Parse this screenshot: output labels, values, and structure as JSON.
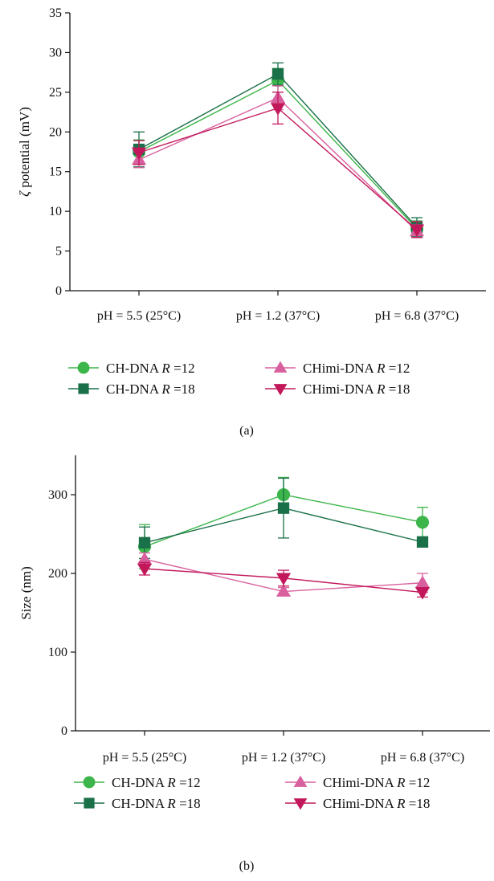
{
  "chart_data": [
    {
      "type": "line",
      "panel_label": "(a)",
      "ylabel_symbol": "ζ",
      "ylabel_text": " potential (mV)",
      "xlabel": "",
      "categories": [
        "pH = 5.5 (25°C)",
        "pH = 1.2 (37°C)",
        "pH = 6.8 (37°C)"
      ],
      "ylim": [
        0,
        35
      ],
      "yticks": [
        0,
        5,
        10,
        15,
        20,
        25,
        30,
        35
      ],
      "grid": false,
      "legend_position": "bottom",
      "series": [
        {
          "name": "CH-DNA R = 12",
          "label_prefix": "CH-DNA ",
          "label_var": "R",
          "label_suffix": " =12",
          "marker": "circle",
          "color": "#3cb54a",
          "values": [
            17.5,
            26.5,
            7.8
          ],
          "errors": [
            1.5,
            1.5,
            1.0
          ]
        },
        {
          "name": "CH-DNA R = 18",
          "label_prefix": "CH-DNA ",
          "label_var": "R",
          "label_suffix": " =18",
          "marker": "square",
          "color": "#1a7048",
          "values": [
            17.8,
            27.3,
            8.0
          ],
          "errors": [
            2.2,
            1.4,
            1.2
          ]
        },
        {
          "name": "CHimi-DNA R = 12",
          "label_prefix": "CHimi-DNA ",
          "label_var": "R",
          "label_suffix": " =12",
          "marker": "triangle-up",
          "color": "#d9609e",
          "values": [
            16.5,
            24.3,
            7.5
          ],
          "errors": [
            1.0,
            1.5,
            0.8
          ]
        },
        {
          "name": "CHimi-DNA R = 18",
          "label_prefix": "CHimi-DNA ",
          "label_var": "R",
          "label_suffix": " =18",
          "marker": "triangle-down",
          "color": "#c2185b",
          "values": [
            17.4,
            23.0,
            7.7
          ],
          "errors": [
            1.5,
            2.0,
            1.0
          ]
        }
      ]
    },
    {
      "type": "line",
      "panel_label": "(b)",
      "ylabel_symbol": "",
      "ylabel_text": "Size (nm)",
      "xlabel": "",
      "categories": [
        "pH = 5.5 (25°C)",
        "pH = 1.2 (37°C)",
        "pH = 6.8 (37°C)"
      ],
      "ylim": [
        0,
        350
      ],
      "yticks": [
        0,
        100,
        200,
        300
      ],
      "grid": false,
      "legend_position": "bottom",
      "series": [
        {
          "name": "CH-DNA R = 12",
          "label_prefix": "CH-DNA ",
          "label_var": "R",
          "label_suffix": " =12",
          "marker": "circle",
          "color": "#3cb54a",
          "values": [
            234,
            300,
            265
          ],
          "errors": [
            28,
            22,
            19
          ]
        },
        {
          "name": "CH-DNA R = 18",
          "label_prefix": "CH-DNA ",
          "label_var": "R",
          "label_suffix": " =18",
          "marker": "square",
          "color": "#1a7048",
          "values": [
            239,
            283,
            240
          ],
          "errors": [
            20,
            38,
            5
          ]
        },
        {
          "name": "CHimi-DNA R = 12",
          "label_prefix": "CHimi-DNA ",
          "label_var": "R",
          "label_suffix": " =12",
          "marker": "triangle-up",
          "color": "#d9609e",
          "values": [
            218,
            177,
            188
          ],
          "errors": [
            8,
            5,
            12
          ]
        },
        {
          "name": "CHimi-DNA R = 18",
          "label_prefix": "CHimi-DNA ",
          "label_var": "R",
          "label_suffix": " =18",
          "marker": "triangle-down",
          "color": "#c2185b",
          "values": [
            206,
            194,
            176
          ],
          "errors": [
            8,
            10,
            6
          ]
        }
      ]
    }
  ]
}
